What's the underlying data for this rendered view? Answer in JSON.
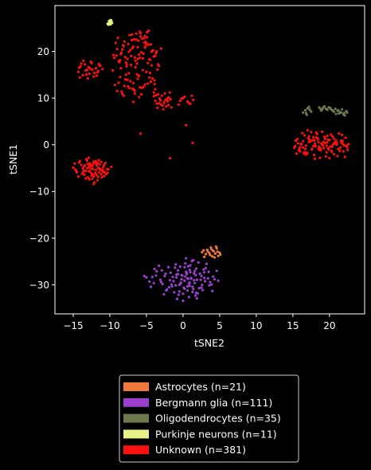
{
  "chart_data": {
    "type": "scatter",
    "title": "",
    "xlabel": "tSNE2",
    "ylabel": "tSNE1",
    "xlim": [
      -17.5,
      24.8
    ],
    "ylim": [
      -36.2,
      29.8
    ],
    "xticks": [
      -15,
      -10,
      -5,
      0,
      5,
      10,
      15,
      20
    ],
    "yticks": [
      -30,
      -20,
      -10,
      0,
      10,
      20
    ],
    "grid": false,
    "legend_position": "bottom",
    "background": "#000000",
    "series": [
      {
        "name": "Astrocytes (n=21)",
        "color": "#f07a3c",
        "x": [
          2.8,
          3.4,
          3.9,
          4.2,
          4.6,
          5.0,
          3.1,
          3.7,
          4.4,
          4.8,
          2.6,
          3.3,
          4.0,
          4.5,
          5.1,
          3.6,
          4.1,
          2.9,
          4.7,
          3.8,
          4.3
        ],
        "y": [
          -22.6,
          -22.9,
          -22.4,
          -22.8,
          -22.2,
          -23.1,
          -23.4,
          -23.6,
          -23.3,
          -23.8,
          -23.0,
          -22.5,
          -23.9,
          -21.8,
          -23.5,
          -23.2,
          -22.7,
          -24.0,
          -22.9,
          -22.0,
          -24.1
        ]
      },
      {
        "name": "Bergmann glia (n=111)",
        "color": "#9b3fd0",
        "x": [
          0.7,
          -0.2,
          1.6,
          2.5,
          -1.8,
          0.9,
          1.3,
          -0.9,
          2.9,
          0.6,
          -2.4,
          1.9,
          -0.5,
          0.4,
          -3.0,
          3.4,
          1.0,
          -1.2,
          2.2,
          -0.1,
          0.2,
          1.5,
          -4.2,
          3.9,
          -2.0,
          0.8,
          1.1,
          -0.7,
          2.7,
          -1.5,
          0.5,
          -3.6,
          4.3,
          1.8,
          -0.3,
          0.0,
          2.1,
          -2.8,
          1.4,
          0.3,
          -1.0,
          3.1,
          -4.6,
          1.7,
          -0.6,
          0.9,
          2.4,
          -1.7,
          0.1,
          4.0,
          -2.2,
          1.2,
          -0.4,
          3.6,
          -3.3,
          0.6,
          1.9,
          -1.3,
          2.8,
          -0.8,
          0.7,
          -5.0,
          4.6,
          1.5,
          -2.6,
          0.2,
          3.2,
          -0.9,
          1.0,
          -1.9,
          2.0,
          -3.9,
          0.4,
          3.7,
          -0.2,
          1.3,
          -2.5,
          2.6,
          -1.1,
          0.8,
          -4.4,
          4.1,
          0.0,
          1.6,
          -3.1,
          2.3,
          -0.5,
          0.9,
          -1.6,
          3.0,
          -2.9,
          1.1,
          0.5,
          -0.3,
          2.5,
          -3.7,
          1.8,
          -1.4,
          0.3,
          3.5,
          -5.3,
          4.8,
          0.6,
          -2.3,
          1.4,
          -0.7,
          2.9,
          -4.0,
          0.2,
          1.7,
          -1.0
        ],
        "y": [
          -28.7,
          -27.9,
          -29.6,
          -28.1,
          -29.0,
          -26.8,
          -30.4,
          -28.4,
          -27.3,
          -31.2,
          -27.6,
          -28.9,
          -30.0,
          -27.2,
          -29.4,
          -28.6,
          -25.8,
          -31.6,
          -30.7,
          -28.0,
          -29.1,
          -27.5,
          -28.3,
          -29.9,
          -26.2,
          -32.6,
          -28.5,
          -26.9,
          -31.1,
          -30.3,
          -27.7,
          -27.1,
          -28.8,
          -26.5,
          -29.7,
          -31.9,
          -25.2,
          -29.8,
          -30.9,
          -28.2,
          -25.6,
          -26.4,
          -29.3,
          -27.9,
          -32.1,
          -29.5,
          -28.9,
          -27.4,
          -30.6,
          -31.3,
          -31.0,
          -24.9,
          -26.1,
          -30.1,
          -25.9,
          -28.6,
          -32.9,
          -29.2,
          -26.7,
          -33.0,
          -26.0,
          -28.4,
          -27.0,
          -29.0,
          -32.0,
          -30.8,
          -25.5,
          -27.8,
          -27.3,
          -30.5,
          -31.8,
          -26.6,
          -24.3,
          -29.4,
          -28.8,
          -31.5,
          -28.1,
          -30.0,
          -26.3,
          -29.7,
          -30.4,
          -28.2,
          -33.4,
          -27.0,
          -28.9,
          -27.6,
          -31.4,
          -30.2,
          -29.9,
          -29.2,
          -26.9,
          -28.7,
          -27.4,
          -29.5,
          -30.6,
          -28.0,
          -31.7,
          -28.3,
          -25.4,
          -27.2,
          -28.1,
          -29.1,
          -30.3,
          -31.2,
          -24.7,
          -27.7,
          -28.5,
          -29.6,
          -26.2,
          -32.3,
          -30.1
        ]
      },
      {
        "name": "Oligodendrocytes (n=35)",
        "color": "#6e7a4e",
        "x": [
          16.4,
          16.7,
          17.0,
          17.2,
          16.9,
          17.5,
          18.6,
          19.0,
          19.3,
          19.7,
          20.1,
          20.4,
          20.8,
          21.1,
          21.4,
          21.7,
          22.0,
          22.3,
          21.9,
          21.3,
          20.6,
          19.9,
          19.5,
          18.9,
          20.2,
          21.6,
          22.1,
          17.3,
          16.8,
          19.1,
          20.9,
          21.2,
          22.4,
          18.8,
          20.5
        ],
        "y": [
          6.9,
          7.4,
          7.8,
          8.1,
          6.4,
          7.1,
          8.0,
          7.6,
          8.2,
          7.5,
          7.9,
          7.4,
          7.7,
          7.3,
          7.0,
          7.6,
          6.8,
          7.2,
          6.5,
          6.7,
          7.1,
          8.0,
          7.7,
          7.3,
          7.6,
          6.9,
          6.3,
          7.5,
          6.8,
          7.9,
          6.6,
          7.4,
          6.9,
          7.6,
          7.2
        ]
      },
      {
        "name": "Purkinje neurons (n=11)",
        "color": "#e8f088",
        "x": [
          -10.2,
          -10.0,
          -9.8,
          -10.1,
          -9.9,
          -10.3,
          -9.7,
          -10.0,
          -9.9,
          -10.1,
          -9.8
        ],
        "y": [
          25.7,
          26.0,
          26.3,
          26.5,
          26.7,
          25.9,
          26.1,
          26.4,
          25.8,
          26.2,
          26.6
        ]
      },
      {
        "name": "Unknown (n=381)",
        "color": "#ff1010",
        "x": [
          -15.0,
          -14.6,
          -14.2,
          -13.8,
          -13.4,
          -13.0,
          -12.6,
          -12.2,
          -11.8,
          -11.4,
          -11.0,
          -10.6,
          -10.2,
          -9.8,
          -14.8,
          -14.3,
          -13.6,
          -13.1,
          -12.8,
          -12.4,
          -12.0,
          -11.6,
          -11.2,
          -10.8,
          -10.4,
          -14.5,
          -13.9,
          -13.3,
          -12.9,
          -12.3,
          -11.7,
          -11.3,
          -10.9,
          -10.5,
          -14.1,
          -13.5,
          -12.7,
          -12.1,
          -11.5,
          -10.7,
          -13.7,
          -12.5,
          -11.9,
          -11.1,
          -12.9,
          -12.2,
          -13.2,
          -11.6,
          -14.7,
          -10.3,
          -14.3,
          -14.0,
          -13.7,
          -13.4,
          -13.1,
          -12.8,
          -12.5,
          -12.2,
          -11.9,
          -11.6,
          -11.3,
          -11.0,
          -14.1,
          -13.6,
          -13.2,
          -12.9,
          -12.6,
          -12.1,
          -11.8,
          -11.4,
          -13.9,
          -13.0,
          -12.4,
          -11.7,
          -12.7,
          -13.3,
          -11.5,
          -14.2,
          -9.5,
          -9.0,
          -8.6,
          -8.2,
          -7.8,
          -7.4,
          -7.0,
          -6.6,
          -6.2,
          -5.8,
          -5.4,
          -5.0,
          -4.6,
          -4.2,
          -3.8,
          -3.4,
          -3.0,
          -9.2,
          -8.8,
          -8.4,
          -8.0,
          -7.6,
          -7.2,
          -6.8,
          -6.4,
          -6.0,
          -5.6,
          -5.2,
          -4.8,
          -4.4,
          -4.0,
          -3.6,
          -9.4,
          -8.9,
          -8.5,
          -8.1,
          -7.7,
          -7.3,
          -6.9,
          -6.5,
          -6.1,
          -5.7,
          -5.3,
          -4.9,
          -4.5,
          -4.1,
          -3.7,
          -3.3,
          -9.1,
          -8.7,
          -8.3,
          -7.9,
          -7.5,
          -7.1,
          -6.7,
          -6.3,
          -5.9,
          -5.5,
          -5.1,
          -4.7,
          -4.3,
          -3.9,
          -8.6,
          -8.0,
          -7.4,
          -6.8,
          -6.2,
          -5.6,
          -5.0,
          -4.4,
          -3.8,
          -7.8,
          -7.2,
          -6.6,
          -6.0,
          -5.4,
          -4.8,
          -4.2,
          -9.3,
          -8.4,
          -7.6,
          -6.9,
          -6.3,
          -5.7,
          -5.2,
          -4.6,
          -4.0,
          -3.5,
          -8.8,
          -8.1,
          -7.5,
          -6.7,
          -6.1,
          -5.5,
          -4.9,
          -7.0,
          -6.4,
          -5.8,
          -5.3,
          -4.7,
          -6.6,
          -6.0,
          -5.1,
          -7.3,
          -4.3,
          -5.9,
          -6.2,
          -9.6,
          -9.0,
          -8.5,
          -7.9,
          -7.1,
          -6.5,
          -5.9,
          -5.2,
          -4.5,
          -3.9,
          -8.3,
          -7.7,
          -6.8,
          -4.0,
          -3.6,
          -3.2,
          -2.8,
          -2.4,
          -2.0,
          -1.6,
          -3.8,
          -3.4,
          -3.0,
          -2.6,
          -2.2,
          -1.8,
          -3.5,
          -2.9,
          -2.3,
          -3.1,
          -2.5,
          -1.9,
          -3.3,
          -2.7,
          -2.1,
          -1.7,
          -3.7,
          -2.0,
          -2.6,
          -0.6,
          -0.2,
          0.2,
          0.6,
          1.0,
          1.4,
          0.0,
          0.8,
          -0.4,
          1.2,
          0.4,
          -1.8,
          -5.8,
          1.3,
          15.2,
          15.6,
          16.0,
          16.4,
          16.8,
          17.2,
          17.6,
          18.0,
          18.4,
          18.8,
          19.2,
          19.6,
          20.0,
          20.4,
          20.8,
          21.2,
          21.6,
          22.0,
          22.4,
          15.4,
          15.8,
          16.2,
          16.6,
          17.0,
          17.4,
          17.8,
          18.2,
          18.6,
          19.0,
          19.4,
          19.8,
          20.2,
          20.6,
          21.0,
          21.4,
          21.8,
          22.2,
          15.5,
          16.1,
          16.7,
          17.3,
          17.9,
          18.5,
          19.1,
          19.7,
          20.3,
          20.9,
          21.5,
          22.1,
          16.3,
          16.9,
          17.5,
          18.1,
          18.7,
          19.3,
          19.9,
          20.5,
          21.1,
          21.7,
          15.9,
          17.1,
          18.3,
          19.5,
          20.7,
          21.9,
          16.5,
          17.7,
          18.9,
          20.1,
          21.3,
          22.5,
          17.0,
          18.0,
          19.0,
          20.0,
          18.4,
          19.6,
          17.4,
          16.0,
          21.0,
          20.4,
          18.8,
          17.8,
          19.2,
          16.6,
          21.6,
          15.7,
          22.3,
          17.2,
          18.6,
          19.8,
          20.8,
          18.2,
          16.8,
          19.4,
          17.6,
          20.6,
          15.3,
          22.6,
          16.4,
          21.8,
          18.5,
          19.7,
          17.9,
          20.3,
          -12.3,
          -11.8,
          -12.7,
          -13.0,
          -11.5,
          -12.1,
          -12.5,
          -11.9,
          -12.9,
          -13.3,
          -11.2,
          -12.6,
          -11.4,
          -13.5,
          -10.9,
          -12.2,
          -11.7,
          -12.8,
          -11.1,
          -12.4,
          -13.1,
          -10.8,
          -12.0,
          -11.6,
          -13.6,
          -12.3,
          -11.9,
          -12.7
        ],
        "y": [
          -4.9,
          -5.6,
          -3.8,
          -6.2,
          -4.4,
          -7.0,
          -5.1,
          -3.6,
          -6.5,
          -4.2,
          -5.8,
          -3.9,
          -5.3,
          -4.7,
          -4.0,
          -6.8,
          -5.5,
          -3.4,
          -7.4,
          -4.6,
          -6.0,
          -5.0,
          -3.7,
          -6.7,
          -5.2,
          -5.9,
          -4.3,
          -7.2,
          -5.7,
          -4.1,
          -7.6,
          -5.4,
          -4.8,
          -6.3,
          -3.5,
          -6.4,
          -4.5,
          -8.1,
          -3.3,
          -5.9,
          -5.0,
          -6.1,
          -4.0,
          -7.0,
          -2.8,
          -8.4,
          -3.1,
          -6.9,
          -5.3,
          -6.0,
          15.6,
          16.8,
          14.9,
          17.2,
          16.0,
          15.2,
          17.5,
          14.6,
          16.4,
          15.8,
          17.0,
          16.2,
          14.4,
          18.0,
          15.0,
          16.6,
          17.8,
          15.4,
          14.8,
          16.9,
          17.4,
          14.2,
          16.1,
          15.5,
          16.3,
          15.9,
          17.3,
          16.5,
          19.2,
          20.5,
          18.1,
          21.3,
          17.6,
          19.9,
          22.4,
          18.7,
          20.9,
          23.2,
          19.5,
          21.7,
          18.3,
          20.1,
          19.0,
          17.2,
          20.6,
          21.8,
          17.9,
          19.7,
          22.1,
          18.4,
          20.3,
          21.0,
          23.8,
          19.3,
          22.7,
          20.8,
          17.5,
          21.5,
          18.9,
          20.0,
          18.6,
          22.9,
          19.4,
          21.1,
          17.3,
          23.5,
          20.7,
          18.0,
          22.3,
          19.8,
          21.9,
          23.0,
          18.2,
          20.2,
          19.6,
          16.9,
          19.1,
          17.7,
          20.4,
          18.8,
          21.6,
          19.0,
          22.6,
          17.4,
          24.2,
          18.5,
          22.0,
          21.4,
          19.9,
          13.8,
          14.5,
          12.6,
          15.3,
          13.2,
          14.1,
          12.2,
          15.6,
          13.5,
          11.9,
          15.0,
          13.6,
          11.6,
          14.8,
          12.4,
          13.1,
          14.2,
          12.8,
          11.4,
          13.9,
          12.0,
          15.1,
          10.8,
          12.9,
          14.4,
          11.2,
          16.1,
          13.3,
          10.5,
          12.5,
          11.8,
          14.7,
          16.0,
          24.1,
          23.6,
          22.5,
          23.9,
          22.8,
          24.4,
          11.0,
          10.2,
          21.2,
          12.1,
          17.0,
          18.6,
          18.4,
          15.9,
          11.5,
          16.4,
          14.0,
          17.1,
          16.6,
          12.3,
          23.3,
          15.4,
          13.0,
          10.9,
          16.8,
          9.2,
          10.4,
          8.8,
          9.9,
          8.4,
          9.6,
          10.1,
          8.0,
          9.4,
          10.8,
          8.6,
          9.0,
          9.8,
          11.2,
          7.9,
          10.5,
          8.2,
          9.5,
          11.0,
          10.0,
          8.9,
          7.6,
          9.3,
          9.7,
          10.6,
          8.5,
          9.1,
          8.6,
          9.9,
          10.3,
          9.3,
          8.8,
          9.6,
          10.0,
          8.9,
          9.4,
          10.5,
          4.2,
          -2.9,
          2.4,
          0.4,
          -0.6,
          1.2,
          -1.4,
          0.8,
          -0.2,
          1.8,
          -1.0,
          0.2,
          1.4,
          -0.8,
          0.6,
          -1.6,
          1.0,
          -0.4,
          0.3,
          -0.9,
          0.5,
          -0.1,
          -0.5,
          0.9,
          -1.2,
          0.1,
          2.0,
          -1.8,
          0.7,
          -0.3,
          1.6,
          -1.1,
          0.0,
          1.3,
          -0.7,
          2.2,
          -2.0,
          0.4,
          -1.3,
          0.8,
          1.5,
          -1.9,
          0.2,
          -0.9,
          1.1,
          -2.2,
          0.6,
          -0.1,
          1.9,
          -1.5,
          0.9,
          -0.6,
          -2.6,
          2.5,
          -1.7,
          2.7,
          -0.3,
          -2.8,
          1.7,
          -1.0,
          0.1,
          -2.4,
          2.1,
          -0.8,
          1.4,
          2.3,
          -2.5,
          0.5,
          -1.4,
          -1.9,
          1.0,
          0.3,
          -0.4,
          2.4,
          -1.1,
          3.1,
          -3.0,
          2.8,
          -2.9,
          1.2,
          -0.2,
          0.7,
          -0.5,
          0.0,
          1.8,
          -1.2,
          1.6,
          -0.7,
          -1.6,
          0.9,
          0.3,
          -0.2,
          0.6,
          -0.4,
          1.1,
          0.2,
          2.6,
          -2.1,
          0.4,
          -0.9,
          1.3,
          -0.3,
          0.1,
          -0.6,
          0.2,
          -0.8,
          0.5,
          0.9,
          -1.3,
          -5.2,
          -4.4,
          -5.7,
          -4.1,
          -5.9,
          -3.7,
          -6.6,
          -5.4,
          -4.8,
          -5.6,
          -6.3,
          -4.5,
          -5.1,
          -4.6,
          -5.5,
          -6.8,
          -3.9,
          -4.2,
          -5.3,
          -7.3,
          -5.0,
          -4.3,
          -6.1,
          -4.9,
          -5.8,
          -6.4,
          -3.5,
          -4.0
        ]
      }
    ]
  }
}
